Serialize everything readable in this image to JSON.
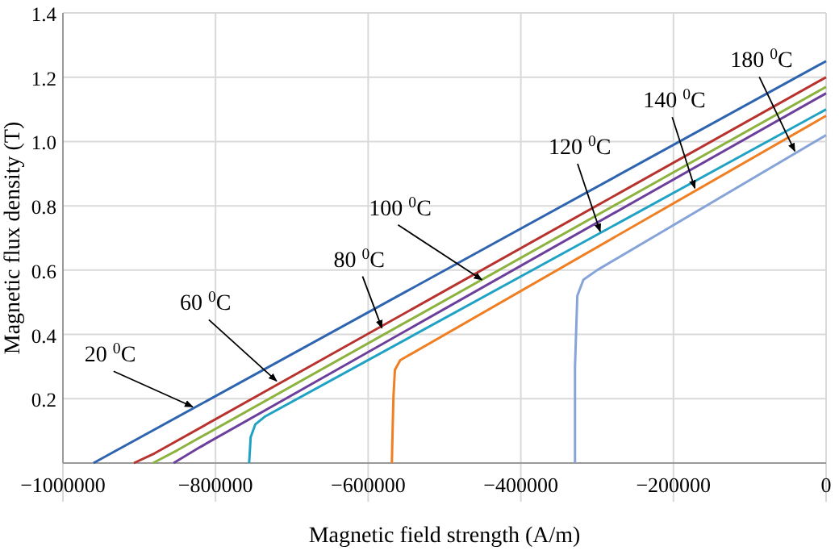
{
  "chart_data": {
    "type": "line",
    "xlabel": "Magnetic field strength (A/m)",
    "ylabel": "Magnetic flux density (T)",
    "xlim": [
      -1000000,
      0
    ],
    "xticks": [
      -1000000,
      -800000,
      -600000,
      -400000,
      -200000,
      0
    ],
    "ylim": [
      0,
      1.4
    ],
    "yticks": [
      0.2,
      0.4,
      0.6,
      0.8,
      {
        "value": 1,
        "label": "1.0"
      },
      1.2,
      1.4
    ],
    "grid": true,
    "marker": "none",
    "line_style": "solid",
    "series": [
      {
        "color": "#2f64b0",
        "x": [
          -960000,
          0
        ],
        "values": [
          0,
          1.25
        ]
      },
      {
        "color": "#b8322e",
        "x": [
          -907000,
          -880000,
          0
        ],
        "values": [
          0,
          0.03,
          1.2
        ]
      },
      {
        "color": "#8db33f",
        "x": [
          -882000,
          -850000,
          0
        ],
        "values": [
          0,
          0.04,
          1.17
        ]
      },
      {
        "color": "#6c3f9c",
        "x": [
          -855000,
          -820000,
          0
        ],
        "values": [
          0,
          0.05,
          1.15
        ]
      },
      {
        "color": "#1fa2c4",
        "x": [
          -756000,
          -754000,
          -748000,
          -735000,
          0
        ],
        "values": [
          0,
          0.08,
          0.12,
          0.145,
          1.1
        ]
      },
      {
        "color": "#ef7f22",
        "x": [
          -569000,
          -567000,
          -565000,
          -558000,
          0
        ],
        "values": [
          0,
          0.2,
          0.29,
          0.32,
          1.08
        ]
      },
      {
        "color": "#86a4d8",
        "x": [
          -329000,
          -329000,
          -326000,
          -318000,
          -300000,
          0
        ],
        "values": [
          0,
          0.3,
          0.52,
          0.57,
          0.6,
          1.02
        ]
      }
    ],
    "annotations": [
      {
        "text": "20 $^{0}$C",
        "x": -830000,
        "y": 0.175
      },
      {
        "text": "60 $^{0}$C",
        "x": -720000,
        "y": 0.255
      },
      {
        "text": "80 $^{0}$C",
        "x": -582000,
        "y": 0.42
      },
      {
        "text": "100 $^{0}$C",
        "x": -451000,
        "y": 0.57
      },
      {
        "text": "120 $^{0}$C",
        "x": -296000,
        "y": 0.72
      },
      {
        "text": "140 $^{0}$C",
        "x": -172000,
        "y": 0.855
      },
      {
        "text": "180 $^{0}$C",
        "x": -41000,
        "y": 0.97
      }
    ]
  }
}
